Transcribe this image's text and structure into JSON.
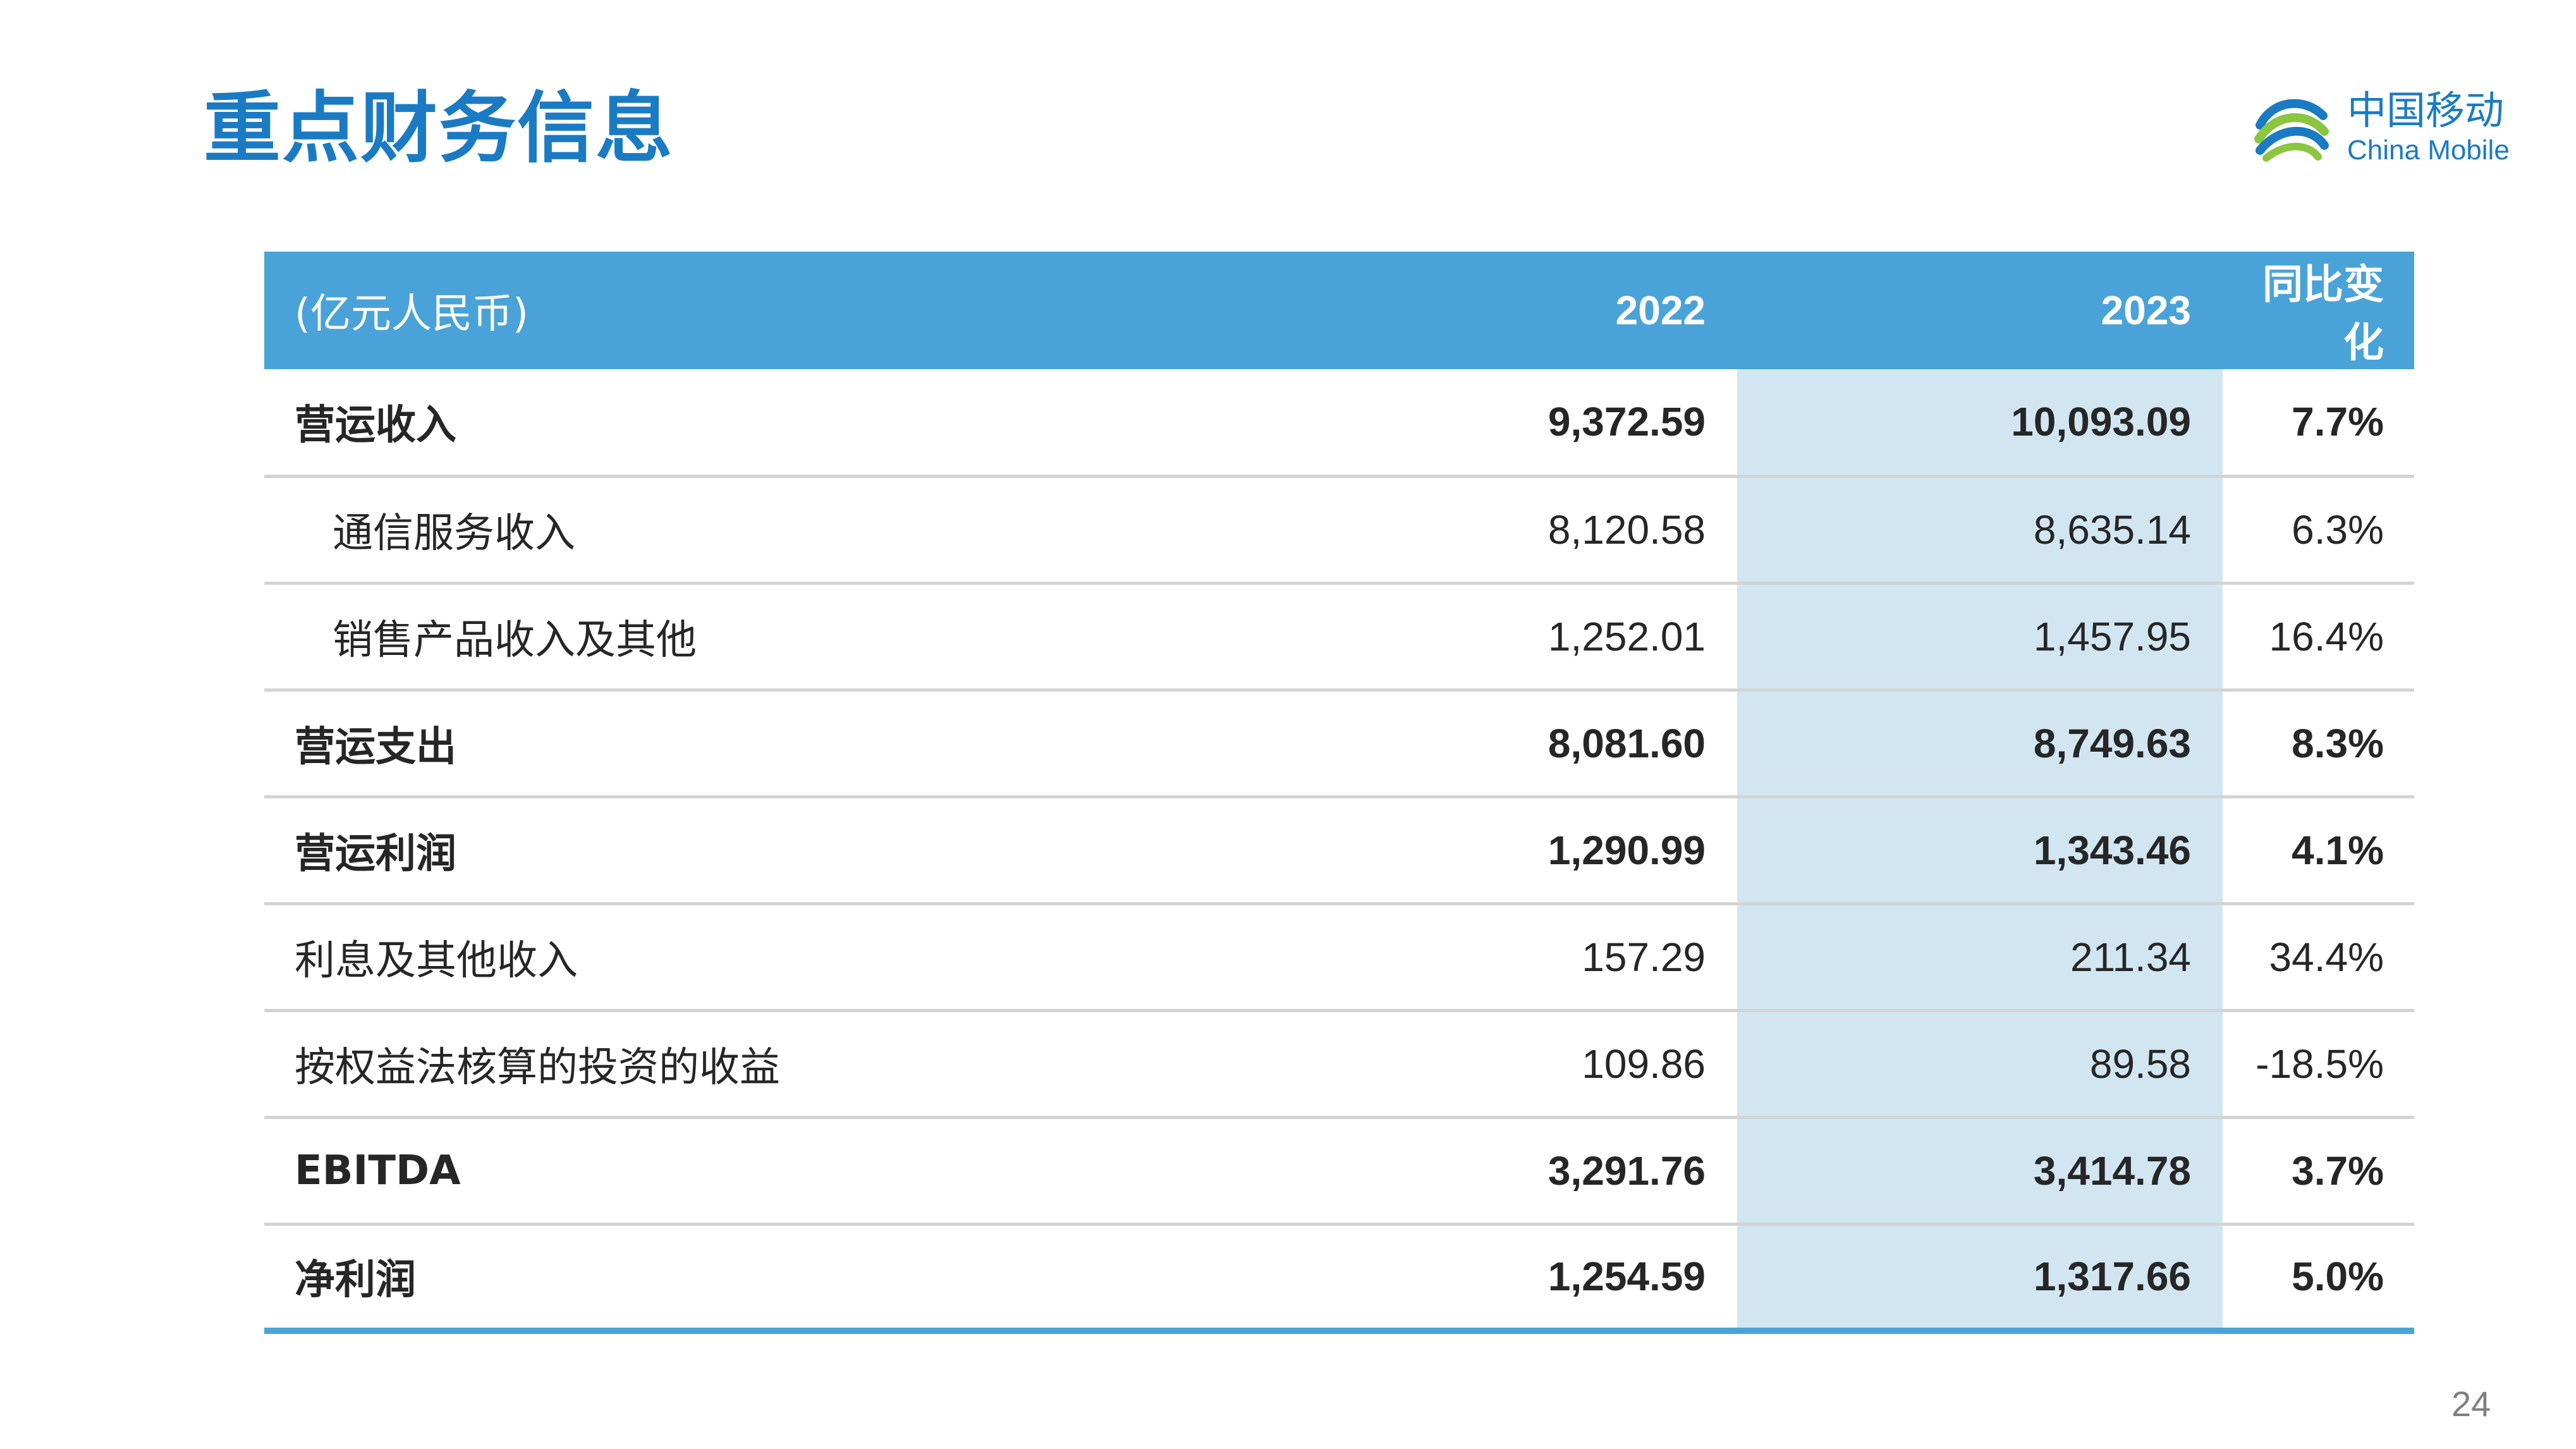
{
  "header": {
    "title": "重点财务信息"
  },
  "logo": {
    "name_cn": "中国移动",
    "name_en": "China Mobile",
    "brand_color": "#1a7bc4",
    "accent_color": "#8cc63f"
  },
  "table": {
    "columns": [
      "(亿元人民币)",
      "2022",
      "2023",
      "同比变化"
    ],
    "rows": [
      {
        "label": "营运收入",
        "y2022": "9,372.59",
        "y2023": "10,093.09",
        "change": "7.7%",
        "bold": true,
        "indent": false
      },
      {
        "label": "通信服务收入",
        "y2022": "8,120.58",
        "y2023": "8,635.14",
        "change": "6.3%",
        "bold": false,
        "indent": true
      },
      {
        "label": "销售产品收入及其他",
        "y2022": "1,252.01",
        "y2023": "1,457.95",
        "change": "16.4%",
        "bold": false,
        "indent": true
      },
      {
        "label": "营运支出",
        "y2022": "8,081.60",
        "y2023": "8,749.63",
        "change": "8.3%",
        "bold": true,
        "indent": false
      },
      {
        "label": "营运利润",
        "y2022": "1,290.99",
        "y2023": "1,343.46",
        "change": "4.1%",
        "bold": true,
        "indent": false
      },
      {
        "label": "利息及其他收入",
        "y2022": "157.29",
        "y2023": "211.34",
        "change": "34.4%",
        "bold": false,
        "indent": false
      },
      {
        "label": "按权益法核算的投资的收益",
        "y2022": "109.86",
        "y2023": "89.58",
        "change": "-18.5%",
        "bold": false,
        "indent": false
      },
      {
        "label": "EBITDA",
        "y2022": "3,291.76",
        "y2023": "3,414.78",
        "change": "3.7%",
        "bold": true,
        "indent": false
      },
      {
        "label": "净利润",
        "y2022": "1,254.59",
        "y2023": "1,317.66",
        "change": "5.0%",
        "bold": true,
        "indent": false
      }
    ],
    "colors": {
      "header_bg": "#4aa3d8",
      "highlight_column_bg": "#d2e6f2",
      "row_divider": "#d3d3d3"
    }
  },
  "footer": {
    "page_number": "24"
  }
}
